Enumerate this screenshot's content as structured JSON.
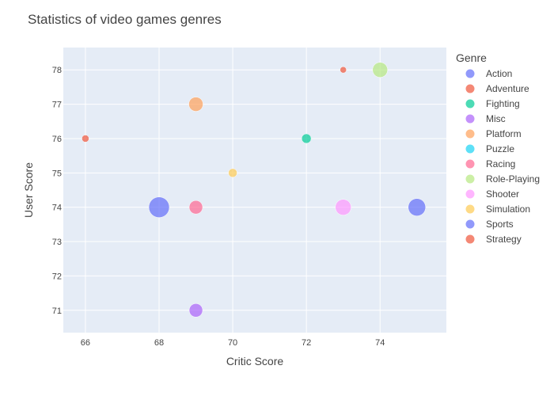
{
  "chart_data": {
    "type": "scatter",
    "title": "Statistics of video games genres",
    "xlabel": "Critic Score",
    "ylabel": "User Score",
    "xlim": [
      65.4,
      75.8
    ],
    "ylim": [
      70.35,
      78.65
    ],
    "x_ticks": [
      66,
      68,
      70,
      72,
      74
    ],
    "y_ticks": [
      71,
      72,
      73,
      74,
      75,
      76,
      77,
      78
    ],
    "grid": true,
    "legend": {
      "title": "Genre",
      "position": "right"
    },
    "series": [
      {
        "name": "Action",
        "color": "#636efa",
        "points": [
          {
            "x": 75,
            "y": 74,
            "size": 11
          }
        ]
      },
      {
        "name": "Adventure",
        "color": "#EF553B",
        "points": [
          {
            "x": 66,
            "y": 76,
            "size": 4.5
          }
        ]
      },
      {
        "name": "Fighting",
        "color": "#00cc96",
        "points": [
          {
            "x": 72,
            "y": 76,
            "size": 6
          }
        ]
      },
      {
        "name": "Misc",
        "color": "#ab63fa",
        "points": [
          {
            "x": 69,
            "y": 71,
            "size": 8.5
          }
        ]
      },
      {
        "name": "Platform",
        "color": "#FFA15A",
        "points": [
          {
            "x": 69,
            "y": 77,
            "size": 9
          }
        ]
      },
      {
        "name": "Puzzle",
        "color": "#19d3f3",
        "points": []
      },
      {
        "name": "Racing",
        "color": "#FF6692",
        "points": [
          {
            "x": 69,
            "y": 74,
            "size": 8.5
          }
        ]
      },
      {
        "name": "Role-Playing",
        "color": "#B6E880",
        "points": [
          {
            "x": 74,
            "y": 78,
            "size": 9.5
          }
        ]
      },
      {
        "name": "Shooter",
        "color": "#FF97FF",
        "points": [
          {
            "x": 73,
            "y": 74,
            "size": 10
          }
        ]
      },
      {
        "name": "Simulation",
        "color": "#FECB52",
        "points": [
          {
            "x": 70,
            "y": 75,
            "size": 5.5
          }
        ]
      },
      {
        "name": "Sports",
        "color": "#636efa",
        "points": [
          {
            "x": 68,
            "y": 74,
            "size": 13
          }
        ]
      },
      {
        "name": "Strategy",
        "color": "#EF553B",
        "points": [
          {
            "x": 73,
            "y": 78,
            "size": 4
          }
        ]
      }
    ]
  },
  "colors": {
    "plot_bg": "#e5ecf6",
    "grid": "#ffffff",
    "text": "#444444"
  }
}
